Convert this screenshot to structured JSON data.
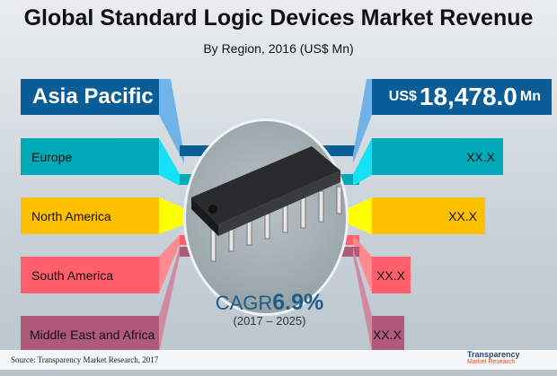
{
  "title": "Global Standard Logic Devices Market Revenue",
  "subtitle": "By Region, 2016 (US$ Mn)",
  "regions": [
    {
      "name": "Asia Pacific",
      "value": "18,478.0",
      "currency": "US$",
      "unit": "Mn",
      "color": "#0a5d96"
    },
    {
      "name": "Europe",
      "value": "XX.X",
      "color": "#00a9b8"
    },
    {
      "name": "North America",
      "value": "XX.X",
      "color": "#ffc000"
    },
    {
      "name": "South America",
      "value": "XX.X",
      "color": "#ff5f6a"
    },
    {
      "name": "Middle East and Africa",
      "value": "XX.X",
      "color": "#b05a7a"
    }
  ],
  "cagr": {
    "label": "CAGR",
    "value": "6.9%",
    "period": "(2017 – 2025)"
  },
  "source": "Source: Transparency  Market Research, 2017",
  "logo": {
    "line1": "Transparency",
    "line2": "Market Research"
  }
}
